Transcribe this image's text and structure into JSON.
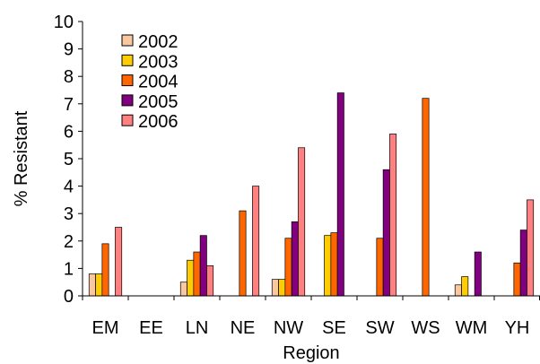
{
  "chart_data": {
    "type": "bar",
    "xlabel": "Region",
    "ylabel": "% Resistant",
    "ylim": [
      0,
      10
    ],
    "yticks": [
      "0",
      "1",
      "2",
      "3",
      "4",
      "5",
      "6",
      "7",
      "8",
      "9",
      "10"
    ],
    "categories": [
      "EM",
      "EE",
      "LN",
      "NE",
      "NW",
      "SE",
      "SW",
      "WS",
      "WM",
      "YH"
    ],
    "legend_position": "top-left",
    "series": [
      {
        "name": "2002",
        "color": "#F9C8A0",
        "values": [
          0.8,
          null,
          0.5,
          null,
          0.6,
          null,
          null,
          null,
          0.4,
          null
        ]
      },
      {
        "name": "2003",
        "color": "#FFCC00",
        "values": [
          0.8,
          null,
          1.3,
          null,
          0.6,
          2.2,
          null,
          null,
          0.7,
          null
        ]
      },
      {
        "name": "2004",
        "color": "#FF6600",
        "values": [
          1.9,
          null,
          1.6,
          3.1,
          2.1,
          2.3,
          2.1,
          7.2,
          null,
          1.2
        ]
      },
      {
        "name": "2005",
        "color": "#800080",
        "values": [
          null,
          null,
          2.2,
          null,
          2.7,
          7.4,
          4.6,
          null,
          1.6,
          2.4
        ]
      },
      {
        "name": "2006",
        "color": "#FF8080",
        "values": [
          2.5,
          null,
          1.1,
          4.0,
          5.4,
          null,
          5.9,
          null,
          null,
          3.5
        ]
      }
    ]
  }
}
